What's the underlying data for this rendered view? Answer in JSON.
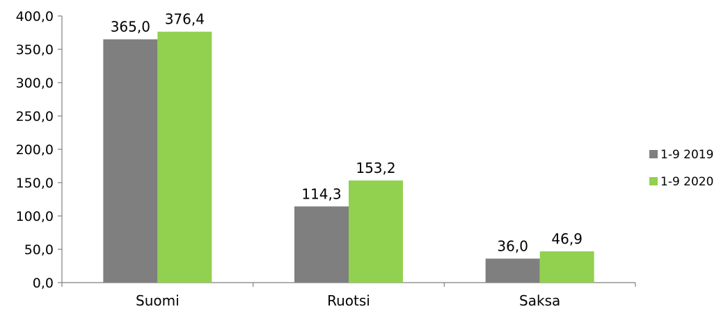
{
  "chart_data": {
    "type": "bar",
    "categories": [
      "Suomi",
      "Ruotsi",
      "Saksa"
    ],
    "series": [
      {
        "name": "1-9 2019",
        "values": [
          365.0,
          114.3,
          36.0
        ],
        "labels": [
          "365,0",
          "114,3",
          "36,0"
        ],
        "color": "#7f7f7f"
      },
      {
        "name": "1-9 2020",
        "values": [
          376.4,
          153.2,
          46.9
        ],
        "labels": [
          "376,4",
          "153,2",
          "46,9"
        ],
        "color": "#92d050"
      }
    ],
    "yticks": [
      0,
      50,
      100,
      150,
      200,
      250,
      300,
      350,
      400
    ],
    "ytick_labels": [
      "0,0",
      "50,0",
      "100,0",
      "150,0",
      "200,0",
      "250,0",
      "300,0",
      "350,0",
      "400,0"
    ],
    "ylim": [
      0,
      400
    ],
    "grid": false,
    "legend_position": "right"
  }
}
